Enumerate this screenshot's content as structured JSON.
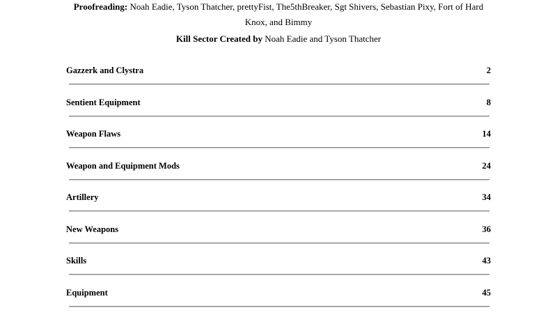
{
  "credits": {
    "label": "Proofreading:",
    "line1_rest": " Noah Eadie, Tyson Thatcher, prettyFist, The5thBreaker, Sgt Shivers, Sebastian Pixy, Fort of Hard",
    "line2": "Knox, and Bimmy"
  },
  "byline": {
    "bold": "Kill Sector Created by",
    "rest": " Noah Eadie and Tyson Thatcher"
  },
  "toc": {
    "entries": [
      {
        "title": "Gazzerk and Clystra",
        "page": "2"
      },
      {
        "title": "Sentient Equipment",
        "page": "8"
      },
      {
        "title": "Weapon Flaws",
        "page": "14"
      },
      {
        "title": "Weapon and Equipment Mods",
        "page": "24"
      },
      {
        "title": "Artillery",
        "page": "34"
      },
      {
        "title": "New Weapons",
        "page": "36"
      },
      {
        "title": "Skills",
        "page": "43"
      },
      {
        "title": "Equipment",
        "page": "45"
      }
    ]
  }
}
